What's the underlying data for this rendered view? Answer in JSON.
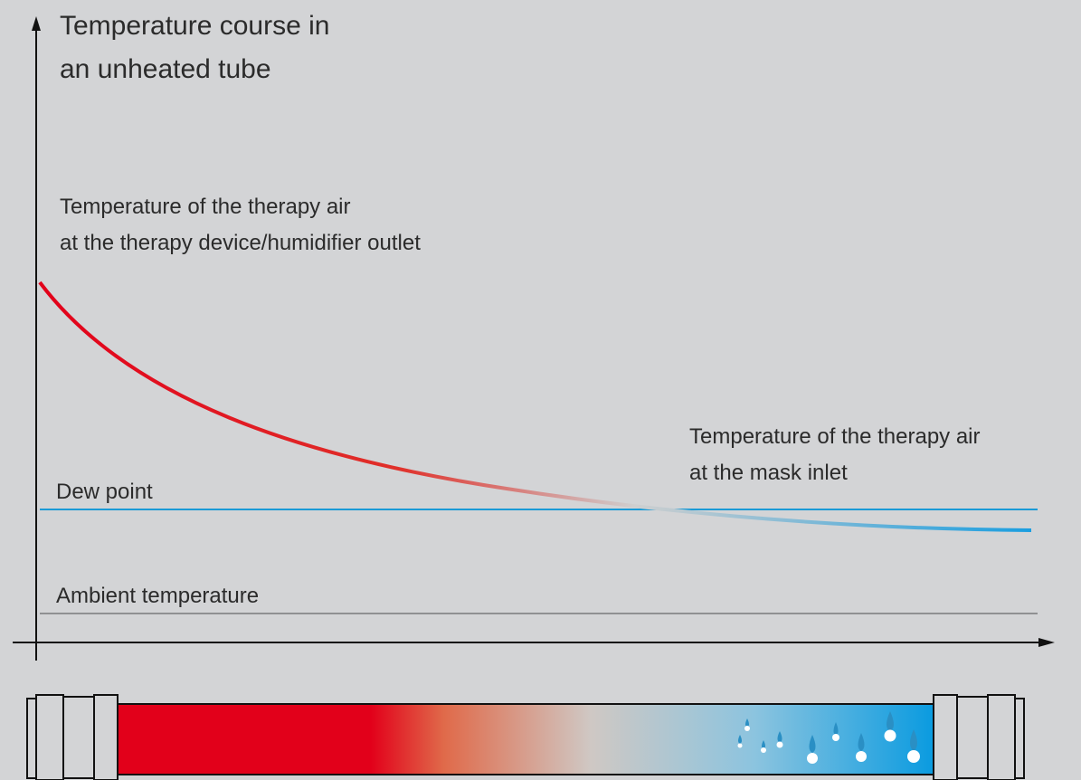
{
  "title": {
    "line1": "Temperature course in",
    "line2": "an unheated tube"
  },
  "labels": {
    "outlet_line1": "Temperature of the therapy air",
    "outlet_line2": "at the therapy device/humidifier outlet",
    "mask_line1": "Temperature of the therapy air",
    "mask_line2": "at the mask inlet",
    "dew_point": "Dew point",
    "ambient": "Ambient temperature"
  }
}
